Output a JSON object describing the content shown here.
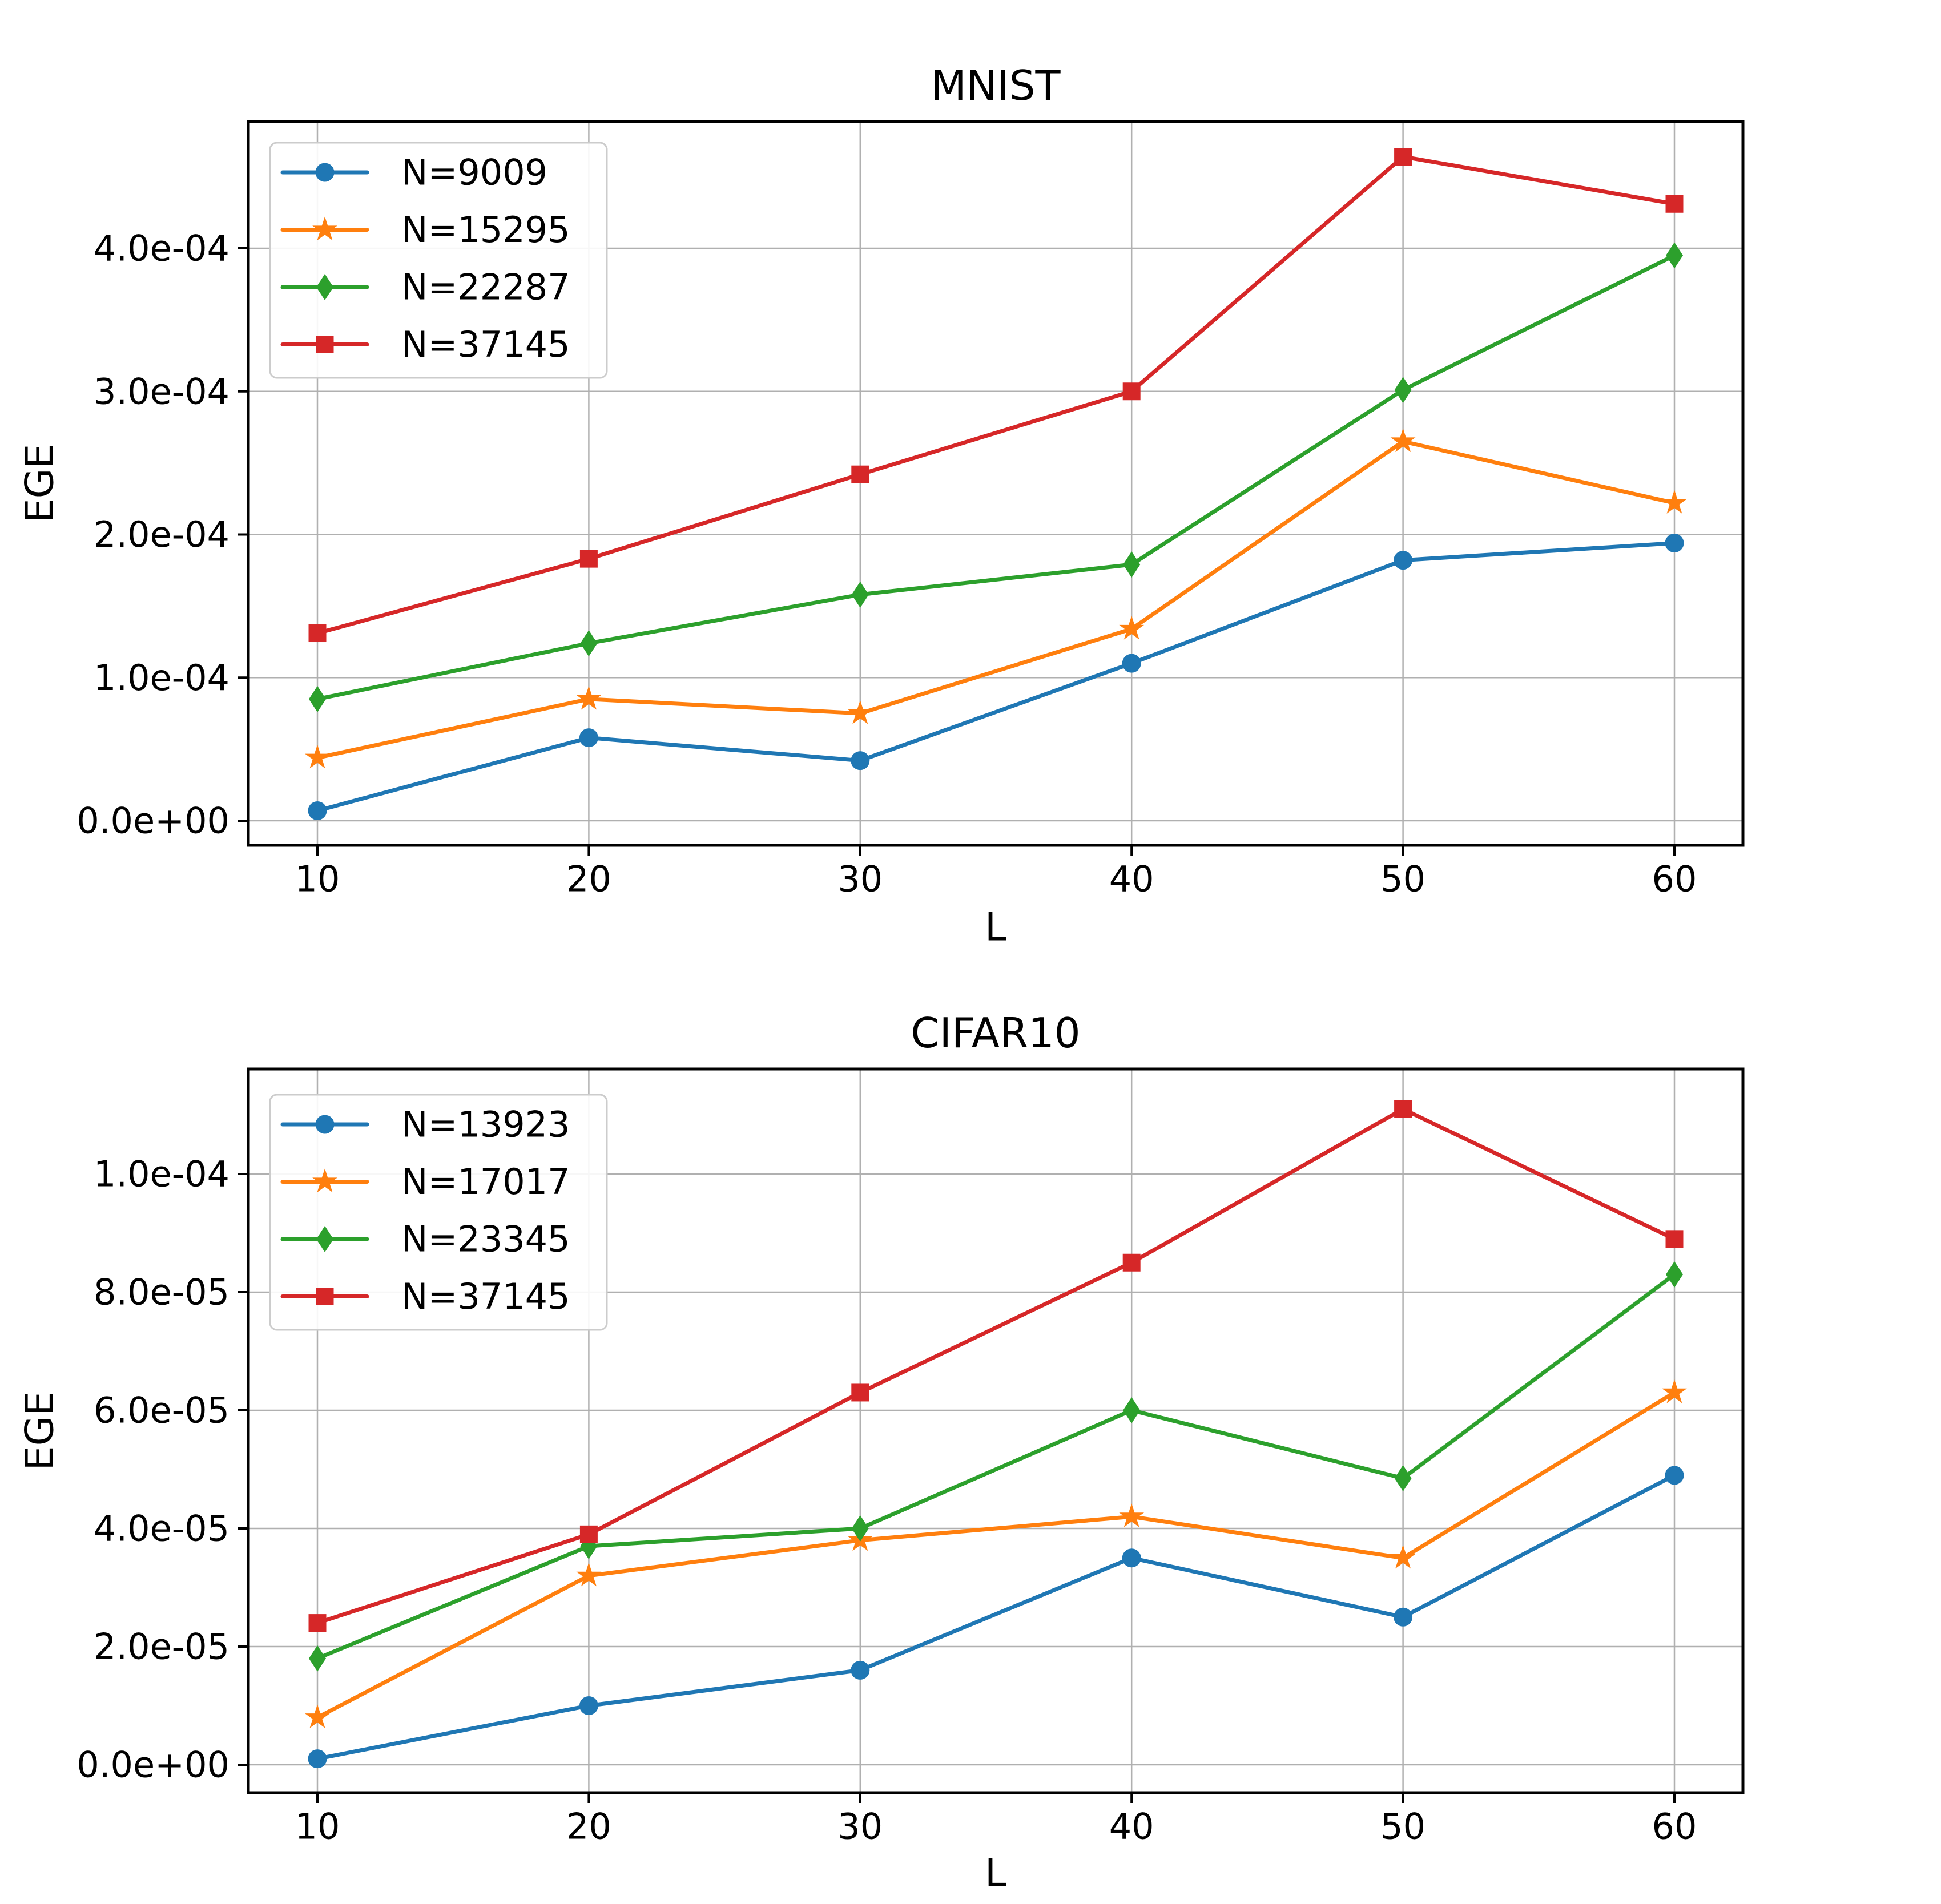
{
  "page": {
    "background": "#ffffff"
  },
  "chart_data": [
    {
      "type": "line",
      "title": "MNIST",
      "xlabel": "L",
      "ylabel": "EGE",
      "x": [
        10,
        20,
        30,
        40,
        50,
        60
      ],
      "xtick_labels": [
        "10",
        "20",
        "30",
        "40",
        "50",
        "60"
      ],
      "ytick_values": [
        0,
        0.0001,
        0.0002,
        0.0003,
        0.0004
      ],
      "ytick_labels": [
        "0.0e+00",
        "1.0e-04",
        "2.0e-04",
        "3.0e-04",
        "4.0e-04"
      ],
      "xlim": [
        7.5,
        62.5
      ],
      "ylim": [
        -1.7e-05,
        0.000489
      ],
      "grid": true,
      "legend_position": "upper left",
      "series": [
        {
          "name": "N=9009",
          "color": "#1f77b4",
          "marker": "circle",
          "values": [
            7e-06,
            5.8e-05,
            4.2e-05,
            0.00011,
            0.000182,
            0.000194
          ]
        },
        {
          "name": "N=15295",
          "color": "#ff7f0e",
          "marker": "star",
          "values": [
            4.4e-05,
            8.5e-05,
            7.5e-05,
            0.000134,
            0.000265,
            0.000222
          ]
        },
        {
          "name": "N=22287",
          "color": "#2ca02c",
          "marker": "diamond",
          "values": [
            8.5e-05,
            0.000124,
            0.000158,
            0.000179,
            0.000301,
            0.000395
          ]
        },
        {
          "name": "N=37145",
          "color": "#d62728",
          "marker": "square",
          "values": [
            0.000131,
            0.000183,
            0.000242,
            0.0003,
            0.000464,
            0.000431
          ]
        }
      ]
    },
    {
      "type": "line",
      "title": "CIFAR10",
      "xlabel": "L",
      "ylabel": "EGE",
      "x": [
        10,
        20,
        30,
        40,
        50,
        60
      ],
      "xtick_labels": [
        "10",
        "20",
        "30",
        "40",
        "50",
        "60"
      ],
      "ytick_values": [
        0,
        2e-05,
        4e-05,
        6e-05,
        8e-05,
        0.0001
      ],
      "ytick_labels": [
        "0.0e+00",
        "2.0e-05",
        "4.0e-05",
        "6.0e-05",
        "8.0e-05",
        "1.0e-04"
      ],
      "xlim": [
        7.5,
        62.5
      ],
      "ylim": [
        -4.7e-06,
        0.000118
      ],
      "grid": true,
      "legend_position": "upper left",
      "series": [
        {
          "name": "N=13923",
          "color": "#1f77b4",
          "marker": "circle",
          "values": [
            1e-06,
            1e-05,
            1.6e-05,
            3.5e-05,
            2.5e-05,
            4.9e-05
          ]
        },
        {
          "name": "N=17017",
          "color": "#ff7f0e",
          "marker": "star",
          "values": [
            8e-06,
            3.2e-05,
            3.8e-05,
            4.2e-05,
            3.5e-05,
            6.3e-05
          ]
        },
        {
          "name": "N=23345",
          "color": "#2ca02c",
          "marker": "diamond",
          "values": [
            1.8e-05,
            3.7e-05,
            4e-05,
            6e-05,
            4.85e-05,
            8.3e-05
          ]
        },
        {
          "name": "N=37145",
          "color": "#d62728",
          "marker": "square",
          "values": [
            2.4e-05,
            3.9e-05,
            6.3e-05,
            8.5e-05,
            0.000111,
            8.9e-05
          ]
        }
      ]
    }
  ],
  "style": {
    "grid_color": "#b0b0b0",
    "spine_color": "#000000",
    "legend_border_color": "#cccccc",
    "legend_fill": "#ffffff"
  }
}
